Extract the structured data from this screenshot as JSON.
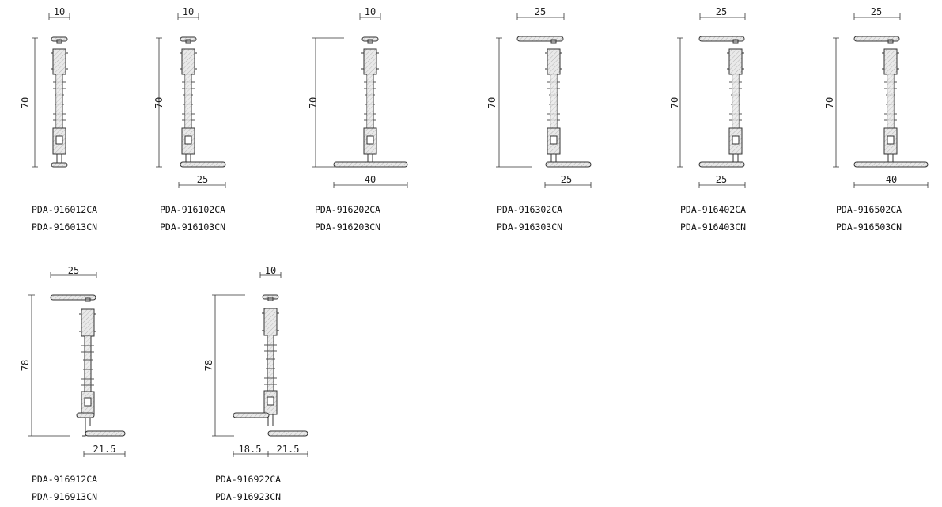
{
  "sheet": {
    "profiles": [
      {
        "codes": [
          "PDA-916012CA",
          "PDA-916013CN"
        ],
        "height_dim": "70",
        "top_dim": "10",
        "bottom_dim": ""
      },
      {
        "codes": [
          "PDA-916102CA",
          "PDA-916103CN"
        ],
        "height_dim": "70",
        "top_dim": "10",
        "bottom_dim": "25"
      },
      {
        "codes": [
          "PDA-916202CA",
          "PDA-916203CN"
        ],
        "height_dim": "70",
        "top_dim": "10",
        "bottom_dim": "40"
      },
      {
        "codes": [
          "PDA-916302CA",
          "PDA-916303CN"
        ],
        "height_dim": "70",
        "top_dim": "25",
        "bottom_dim": "25"
      },
      {
        "codes": [
          "PDA-916402CA",
          "PDA-916403CN"
        ],
        "height_dim": "70",
        "top_dim": "25",
        "bottom_dim": "25"
      },
      {
        "codes": [
          "PDA-916502CA",
          "PDA-916503CN"
        ],
        "height_dim": "70",
        "top_dim": "25",
        "bottom_dim": "40"
      },
      {
        "codes": [
          "PDA-916912CA",
          "PDA-916913CN"
        ],
        "height_dim": "78",
        "top_dim": "25",
        "bottom_dim": "21.5"
      },
      {
        "codes": [
          "PDA-916922CA",
          "PDA-916923CN"
        ],
        "height_dim": "78",
        "top_dim": "10",
        "bottom_dim": "21.5",
        "bottom_dim_left": "18.5"
      }
    ]
  }
}
